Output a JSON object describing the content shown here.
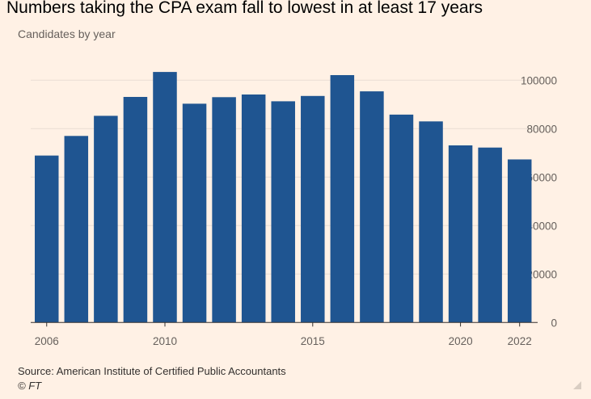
{
  "title": "Numbers taking the CPA exam fall to lowest in at least 17 years",
  "subtitle": "Candidates by year",
  "source": "Source: American Institute of Certified Public Accountants",
  "copyright": "© FT",
  "colors": {
    "bar": "#1f5591",
    "background": "#fff1e5",
    "grid": "#e9ded4",
    "axis": "#33302e"
  },
  "chart_data": {
    "type": "bar",
    "title": "Numbers taking the CPA exam fall to lowest in at least 17 years",
    "subtitle": "Candidates by year",
    "categories": [
      2006,
      2007,
      2008,
      2009,
      2010,
      2011,
      2012,
      2013,
      2014,
      2015,
      2016,
      2017,
      2018,
      2019,
      2020,
      2021,
      2022
    ],
    "values": [
      68900,
      77000,
      85300,
      93100,
      103400,
      90300,
      93000,
      94100,
      91300,
      93500,
      102100,
      95400,
      85800,
      83000,
      73100,
      72200,
      67300
    ],
    "x_tick_labels": [
      "2006",
      "2010",
      "2015",
      "2020",
      "2022"
    ],
    "y_ticks": [
      0,
      20000,
      40000,
      60000,
      80000,
      100000
    ],
    "y_tick_labels": [
      "0",
      "20000",
      "40000",
      "60000",
      "80000",
      "100000"
    ],
    "ylim": [
      0,
      100000
    ],
    "y_axis_position": "right",
    "grid": true,
    "xlabel": "",
    "ylabel": ""
  }
}
